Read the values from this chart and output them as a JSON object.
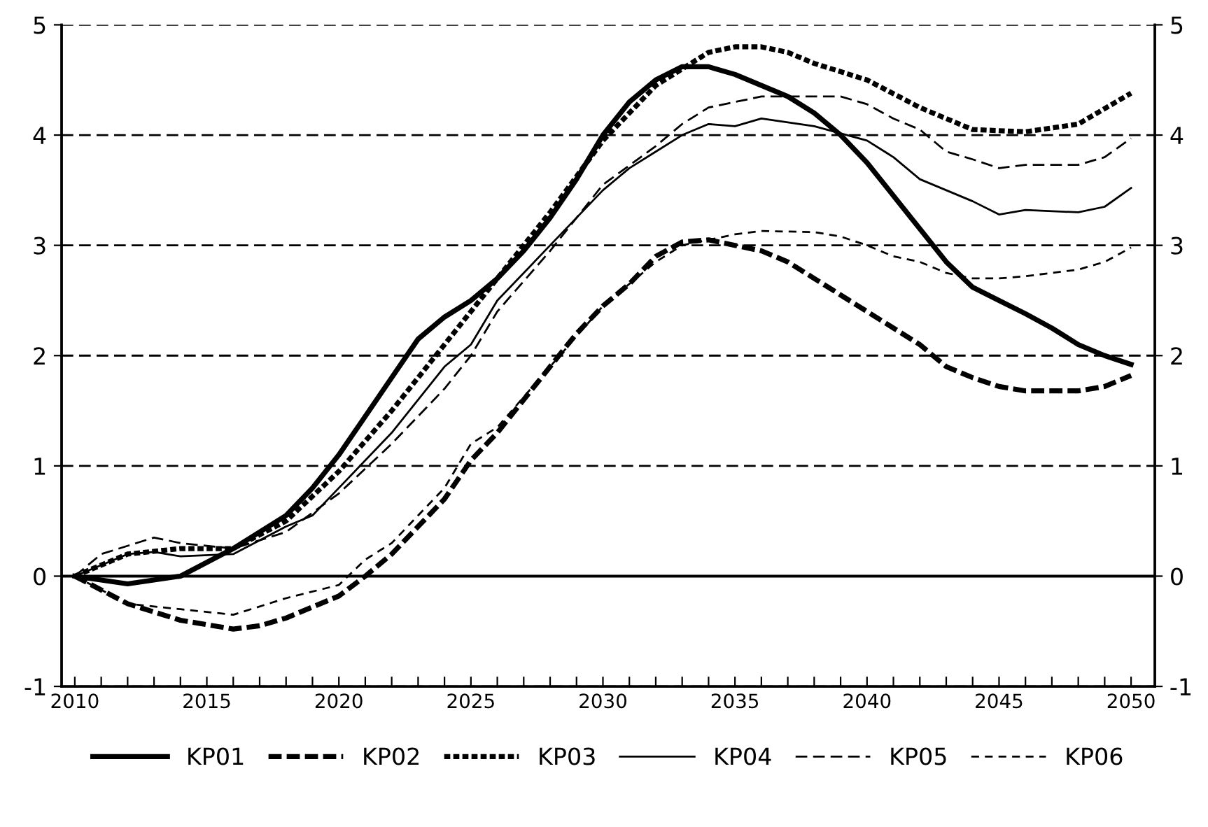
{
  "chart_data": {
    "type": "line",
    "xlim": [
      2009.5,
      2050.9
    ],
    "xticks": [
      2010,
      {
        "value": 2011,
        "label": null
      },
      {
        "value": 2012,
        "label": null
      },
      {
        "value": 2013,
        "label": null
      },
      {
        "value": 2014,
        "label": null
      },
      2015,
      {
        "value": 2016,
        "label": null
      },
      {
        "value": 2017,
        "label": null
      },
      {
        "value": 2018,
        "label": null
      },
      {
        "value": 2019,
        "label": null
      },
      2020,
      {
        "value": 2021,
        "label": null
      },
      {
        "value": 2022,
        "label": null
      },
      {
        "value": 2023,
        "label": null
      },
      {
        "value": 2024,
        "label": null
      },
      2025,
      {
        "value": 2026,
        "label": null
      },
      {
        "value": 2027,
        "label": null
      },
      {
        "value": 2028,
        "label": null
      },
      {
        "value": 2029,
        "label": null
      },
      2030,
      {
        "value": 2031,
        "label": null
      },
      {
        "value": 2032,
        "label": null
      },
      {
        "value": 2033,
        "label": null
      },
      {
        "value": 2034,
        "label": null
      },
      2035,
      {
        "value": 2036,
        "label": null
      },
      {
        "value": 2037,
        "label": null
      },
      {
        "value": 2038,
        "label": null
      },
      {
        "value": 2039,
        "label": null
      },
      2040,
      {
        "value": 2041,
        "label": null
      },
      {
        "value": 2042,
        "label": null
      },
      {
        "value": 2043,
        "label": null
      },
      {
        "value": 2044,
        "label": null
      },
      2045,
      {
        "value": 2046,
        "label": null
      },
      {
        "value": 2047,
        "label": null
      },
      {
        "value": 2048,
        "label": null
      },
      {
        "value": 2049,
        "label": null
      },
      2050
    ],
    "ylim": [
      -1,
      5
    ],
    "yticks": [
      -1,
      0,
      1,
      2,
      3,
      4,
      5
    ],
    "y2lim": [
      -1,
      5
    ],
    "y2ticks": [
      -1,
      0,
      1,
      2,
      3,
      4,
      5
    ],
    "grid": "y",
    "legend": "bottom",
    "marker": "none",
    "ref_lines": [
      {
        "axis": "y",
        "value": 0,
        "color": "#000000",
        "line_style": "solid"
      }
    ],
    "series": [
      {
        "name": "KP01",
        "color": "#000000",
        "line_style": "solid",
        "x": [
          2010,
          2012,
          2014,
          2016,
          2018,
          2019,
          2020,
          2021,
          2022,
          2023,
          2024,
          2025,
          2026,
          2027,
          2028,
          2029,
          2030,
          2031,
          2032,
          2033,
          2034,
          2035,
          2036,
          2037,
          2038,
          2039,
          2040,
          2041,
          2042,
          2043,
          2044,
          2045,
          2046,
          2047,
          2048,
          2049,
          2050
        ],
        "values": [
          0,
          -0.07,
          0,
          0.25,
          0.55,
          0.8,
          1.1,
          1.45,
          1.8,
          2.15,
          2.35,
          2.5,
          2.7,
          2.95,
          3.25,
          3.6,
          4.0,
          4.3,
          4.5,
          4.62,
          4.62,
          4.55,
          4.45,
          4.35,
          4.2,
          4.0,
          3.75,
          3.45,
          3.15,
          2.85,
          2.62,
          2.5,
          2.38,
          2.25,
          2.1,
          2.0,
          1.92
        ]
      },
      {
        "name": "KP02",
        "color": "#000000",
        "line_style": "dashed",
        "x": [
          2010,
          2012,
          2014,
          2016,
          2017,
          2018,
          2020,
          2021,
          2022,
          2023,
          2024,
          2025,
          2026,
          2027,
          2028,
          2029,
          2030,
          2031,
          2032,
          2033,
          2034,
          2035,
          2036,
          2037,
          2038,
          2039,
          2040,
          2041,
          2042,
          2043,
          2044,
          2045,
          2046,
          2047,
          2048,
          2049,
          2050
        ],
        "values": [
          0,
          -0.25,
          -0.4,
          -0.48,
          -0.45,
          -0.38,
          -0.18,
          0,
          0.2,
          0.45,
          0.7,
          1.05,
          1.3,
          1.6,
          1.9,
          2.2,
          2.45,
          2.65,
          2.9,
          3.03,
          3.05,
          3.0,
          2.95,
          2.85,
          2.7,
          2.55,
          2.4,
          2.25,
          2.1,
          1.9,
          1.8,
          1.72,
          1.68,
          1.68,
          1.68,
          1.72,
          1.82
        ]
      },
      {
        "name": "KP03",
        "color": "#000000",
        "line_style": "dotted",
        "x": [
          2010,
          2012,
          2014,
          2016,
          2018,
          2020,
          2022,
          2024,
          2025,
          2026,
          2028,
          2030,
          2032,
          2034,
          2035,
          2036,
          2037,
          2038,
          2040,
          2042,
          2044,
          2046,
          2048,
          2050
        ],
        "values": [
          0,
          0.2,
          0.25,
          0.25,
          0.5,
          0.95,
          1.5,
          2.1,
          2.4,
          2.7,
          3.3,
          3.95,
          4.45,
          4.75,
          4.8,
          4.8,
          4.75,
          4.65,
          4.5,
          4.25,
          4.05,
          4.03,
          4.1,
          4.38
        ]
      },
      {
        "name": "KP04",
        "color": "#000000",
        "line_style": "solid",
        "x": [
          2010,
          2012,
          2013,
          2014,
          2016,
          2018,
          2019,
          2020,
          2022,
          2024,
          2025,
          2026,
          2028,
          2030,
          2031,
          2032,
          2033,
          2034,
          2035,
          2036,
          2038,
          2040,
          2041,
          2042,
          2044,
          2045,
          2046,
          2048,
          2049,
          2050
        ],
        "values": [
          0,
          0.2,
          0.22,
          0.18,
          0.2,
          0.45,
          0.55,
          0.8,
          1.3,
          1.9,
          2.1,
          2.5,
          3.0,
          3.5,
          3.7,
          3.85,
          4.0,
          4.1,
          4.08,
          4.15,
          4.08,
          3.95,
          3.8,
          3.6,
          3.4,
          3.28,
          3.32,
          3.3,
          3.35,
          3.52
        ]
      },
      {
        "name": "KP05",
        "color": "#000000",
        "line_style": "dashed",
        "x": [
          2010,
          2011,
          2013,
          2014,
          2016,
          2018,
          2020,
          2022,
          2024,
          2025,
          2026,
          2028,
          2030,
          2032,
          2033,
          2034,
          2035,
          2036,
          2038,
          2039,
          2040,
          2041,
          2042,
          2043,
          2044,
          2045,
          2046,
          2048,
          2049,
          2050
        ],
        "values": [
          0,
          0.2,
          0.35,
          0.3,
          0.25,
          0.4,
          0.75,
          1.2,
          1.7,
          2.0,
          2.4,
          2.95,
          3.55,
          3.9,
          4.1,
          4.25,
          4.3,
          4.35,
          4.35,
          4.35,
          4.28,
          4.15,
          4.05,
          3.85,
          3.78,
          3.7,
          3.73,
          3.73,
          3.8,
          3.97
        ]
      },
      {
        "name": "KP06",
        "color": "#000000",
        "line_style": "dashed",
        "x": [
          2010,
          2012,
          2014,
          2016,
          2018,
          2020,
          2021,
          2022,
          2023,
          2024,
          2025,
          2026,
          2028,
          2030,
          2032,
          2033,
          2034,
          2035,
          2036,
          2038,
          2039,
          2040,
          2041,
          2042,
          2043,
          2044,
          2045,
          2046,
          2048,
          2049,
          2050
        ],
        "values": [
          0,
          -0.25,
          -0.3,
          -0.35,
          -0.2,
          -0.08,
          0.15,
          0.3,
          0.55,
          0.8,
          1.2,
          1.35,
          1.9,
          2.45,
          2.85,
          3.0,
          3.05,
          3.1,
          3.13,
          3.12,
          3.08,
          3.0,
          2.9,
          2.85,
          2.75,
          2.7,
          2.7,
          2.72,
          2.78,
          2.85,
          2.98
        ]
      }
    ]
  }
}
